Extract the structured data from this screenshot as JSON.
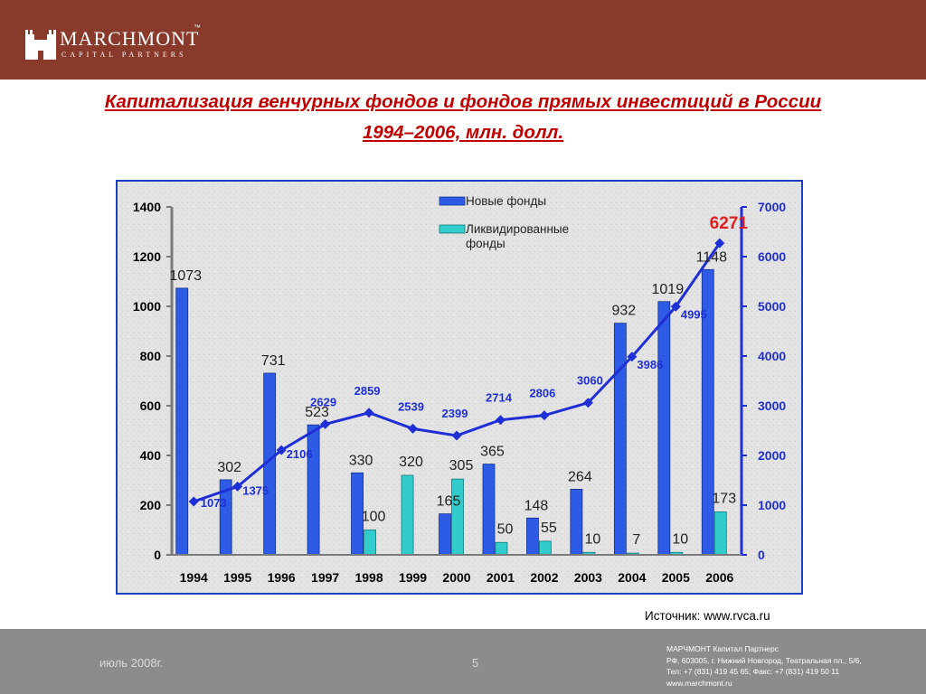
{
  "header": {
    "brand_name": "MARCHMONT",
    "brand_tm": "™",
    "brand_sub": "CAPITAL PARTNERS"
  },
  "title": {
    "line1": "Капитализация венчурных фондов и фондов прямых инвестиций в России",
    "line2": "1994–2006, млн. долл."
  },
  "source": "Источник: www.rvca.ru",
  "footer": {
    "date": "июль 2008г.",
    "page": "5",
    "contact": [
      "МАРЧМОНТ Капитал Партнерс",
      "РФ, 603005, г. Нижний Новгород, Театральная пл., 5/6,",
      "Тел: +7 (831) 419 45 65; Факс: +7 (831) 419 50 11",
      "www.marchmont.ru"
    ]
  },
  "colors": {
    "header_bg": "#8a3a2a",
    "footer_bg": "#8c8c8c",
    "title": "#c00000",
    "new_funds": "#2e5be6",
    "liquidated_funds": "#33cccc",
    "capitalization_line": "#1f2fd6",
    "highlight_label": "#e02020"
  },
  "chart_data": {
    "type": "bar",
    "categories": [
      "1994",
      "1995",
      "1996",
      "1997",
      "1998",
      "1999",
      "2000",
      "2001",
      "2002",
      "2003",
      "2004",
      "2005",
      "2006"
    ],
    "series": [
      {
        "name": "Новые фонды",
        "kind": "bar",
        "axis": "left",
        "values": [
          1073,
          302,
          731,
          523,
          330,
          null,
          165,
          365,
          148,
          264,
          932,
          1019,
          1148
        ],
        "labels": [
          "1073",
          "302",
          "731",
          "523",
          "330",
          "",
          "165",
          "365",
          "148",
          "264",
          "932",
          "1019",
          "1148"
        ]
      },
      {
        "name": "Ликвидированные фонды",
        "kind": "bar",
        "axis": "left",
        "values": [
          null,
          null,
          null,
          null,
          100,
          320,
          305,
          50,
          55,
          10,
          7,
          10,
          173
        ],
        "labels": [
          "",
          "",
          "",
          "",
          "100",
          "320",
          "305",
          "50",
          "55",
          "10",
          "7",
          "10",
          "173"
        ]
      },
      {
        "name": "",
        "kind": "line",
        "axis": "right",
        "values": [
          1073,
          1375,
          2106,
          2629,
          2859,
          2539,
          2399,
          2714,
          2806,
          3060,
          3986,
          4995,
          6271
        ],
        "labels": [
          "1073",
          "1375",
          "2106",
          "2629",
          "2859",
          "2539",
          "2399",
          "2714",
          "2806",
          "3060",
          "3986",
          "4995",
          "6271"
        ]
      }
    ],
    "left_axis": {
      "ylim": [
        0,
        1400
      ],
      "ticks": [
        "0",
        "200",
        "400",
        "600",
        "800",
        "1000",
        "1200",
        "1400"
      ]
    },
    "right_axis": {
      "ylim": [
        0,
        7000
      ],
      "ticks": [
        "0",
        "1000",
        "2000",
        "3000",
        "4000",
        "5000",
        "6000",
        "7000"
      ]
    },
    "legend": {
      "position": "top-center",
      "entries": [
        {
          "label": "Новые фонды"
        },
        {
          "label": "Ликвидированные фонды"
        }
      ]
    },
    "grid": false
  }
}
